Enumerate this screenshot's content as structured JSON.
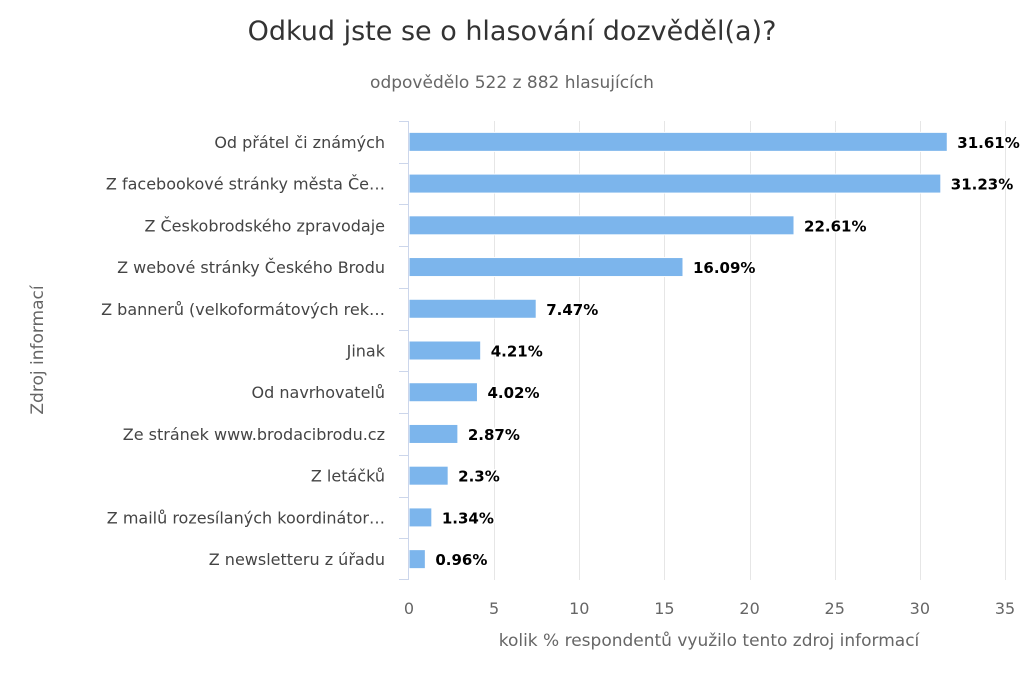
{
  "chart_data": {
    "type": "bar",
    "orientation": "horizontal",
    "title": "Odkud jste se o hlasování dozvěděl(a)?",
    "subtitle": "odpovědělo 522 z 882 hlasujících",
    "xlabel": "kolik % respondentů využilo tento zdroj informací",
    "ylabel": "Zdroj informací",
    "categories": [
      "Od přátel či známých",
      "Z facebookové stránky města Če…",
      "Z Českobrodského zpravodaje",
      "Z webové stránky Českého Brodu",
      "Z bannerů (velkoformátových rek…",
      "Jinak",
      "Od navrhovatelů",
      "Ze stránek www.brodacibrodu.cz",
      "Z letáčků",
      "Z mailů rozesílaných koordinátor…",
      "Z newsletteru z úřadu"
    ],
    "values": [
      31.61,
      31.23,
      22.61,
      16.09,
      7.47,
      4.21,
      4.02,
      2.87,
      2.3,
      1.34,
      0.96
    ],
    "data_labels": [
      "31.61%",
      "31.23%",
      "22.61%",
      "16.09%",
      "7.47%",
      "4.21%",
      "4.02%",
      "2.87%",
      "2.3%",
      "1.34%",
      "0.96%"
    ],
    "xlim": [
      0,
      35
    ],
    "ticks": [
      0,
      5,
      10,
      15,
      20,
      25,
      30,
      35
    ],
    "tick_labels": [
      "0",
      "5",
      "10",
      "15",
      "20",
      "25",
      "30",
      "35"
    ],
    "bar_color": "#7cb5ec",
    "grid": true,
    "legend": "none"
  }
}
